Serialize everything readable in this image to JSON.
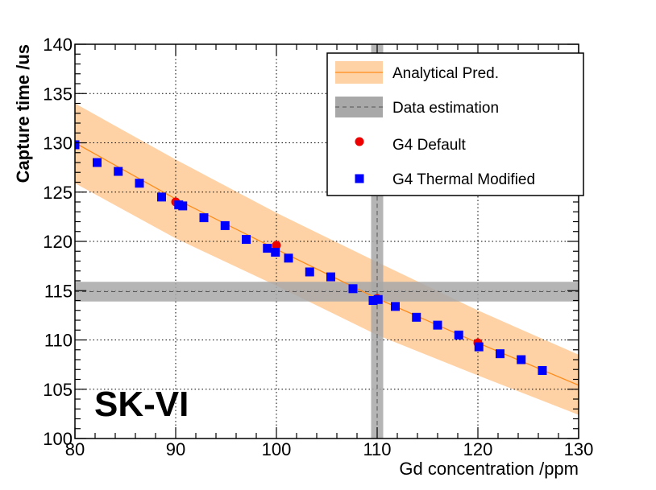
{
  "chart_data": {
    "type": "scatter",
    "title": "",
    "xlabel": "Gd concentration /ppm",
    "ylabel": "Capture time /us",
    "xlim": [
      80,
      130
    ],
    "ylim": [
      100,
      140
    ],
    "x_ticks": [
      80,
      90,
      100,
      110,
      120,
      130
    ],
    "y_ticks": [
      100,
      105,
      110,
      115,
      120,
      125,
      130,
      135,
      140
    ],
    "grid": true,
    "annotation": "SK-VI",
    "legend_position": "top-right",
    "analytical": {
      "name": "Analytical Pred.",
      "x": [
        80,
        90,
        100,
        110,
        120,
        130
      ],
      "center": [
        130.0,
        124.3,
        119.2,
        114.2,
        109.7,
        105.4
      ],
      "lower": [
        125.9,
        120.3,
        115.5,
        110.5,
        106.4,
        102.4
      ],
      "upper": [
        134.0,
        128.3,
        122.9,
        117.9,
        113.0,
        108.5
      ],
      "band_color": "#ffd2a6",
      "line_color": "#ff8c1a"
    },
    "data_estimation": {
      "name": "Data estimation",
      "x": 110.0,
      "x_err": 0.6,
      "y": 114.9,
      "y_err": 1.0,
      "band_color": "#a8a8a8",
      "line_color": "#555555"
    },
    "series": [
      {
        "name": "G4 Default",
        "marker": "circle",
        "color": "#ee0000",
        "x": [
          80,
          90,
          100,
          110,
          120
        ],
        "y": [
          129.8,
          124.0,
          119.6,
          114.2,
          109.7
        ]
      },
      {
        "name": "G4 Thermal Modified",
        "marker": "square",
        "color": "#0000ff",
        "x": [
          80,
          82.2,
          84.3,
          86.4,
          88.6,
          90.3,
          90.7,
          92.8,
          94.9,
          97.0,
          99.1,
          99.9,
          101.2,
          103.3,
          105.4,
          107.6,
          109.6,
          110.1,
          111.8,
          113.9,
          116.0,
          118.1,
          120.1,
          122.2,
          124.3,
          126.4
        ],
        "y": [
          129.8,
          128.0,
          127.1,
          125.9,
          124.5,
          123.7,
          123.6,
          122.4,
          121.6,
          120.2,
          119.3,
          118.9,
          118.3,
          116.9,
          116.4,
          115.2,
          114.0,
          114.1,
          113.4,
          112.3,
          111.5,
          110.5,
          109.3,
          108.6,
          108.0,
          106.9
        ]
      }
    ]
  }
}
